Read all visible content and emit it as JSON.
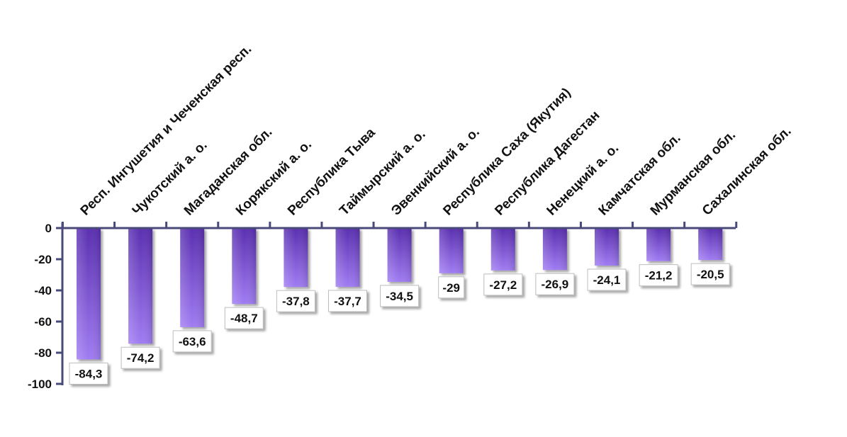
{
  "chart_data": {
    "type": "bar",
    "categories": [
      "Респ. Ингушетия и Чеченская респ.",
      "Чукотский а. о.",
      "Магаданская обл.",
      "Корякский а. о.",
      "Республика Тыва",
      "Таймырский а. о.",
      "Эвенкийский а. о.",
      "Республика Саха (Якутия)",
      "Республика Дагестан",
      "Ненецкий а. о.",
      "Камчатская обл.",
      "Мурманская обл.",
      "Сахалинская обл."
    ],
    "values": [
      -84.3,
      -74.2,
      -63.6,
      -48.7,
      -37.8,
      -37.7,
      -34.5,
      -29,
      -27.2,
      -26.9,
      -24.1,
      -21.2,
      -20.5
    ],
    "value_labels": [
      "-84,3",
      "-74,2",
      "-63,6",
      "-48,7",
      "-37,8",
      "-37,7",
      "-34,5",
      "-29",
      "-27,2",
      "-26,9",
      "-24,1",
      "-21,2",
      "-20,5"
    ],
    "y_ticks": [
      0,
      -20,
      -40,
      -60,
      -80,
      -100
    ],
    "y_tick_labels": [
      "0",
      "-20",
      "-40",
      "-60",
      "-80",
      "-100"
    ],
    "ylim": [
      -100,
      0
    ],
    "grid": false,
    "category_labels_position": "top, rotated",
    "colors": {
      "bar_top": "#5a2fb0",
      "bar_bottom": "#a07cf2",
      "axis": "#4a4a7a"
    }
  }
}
